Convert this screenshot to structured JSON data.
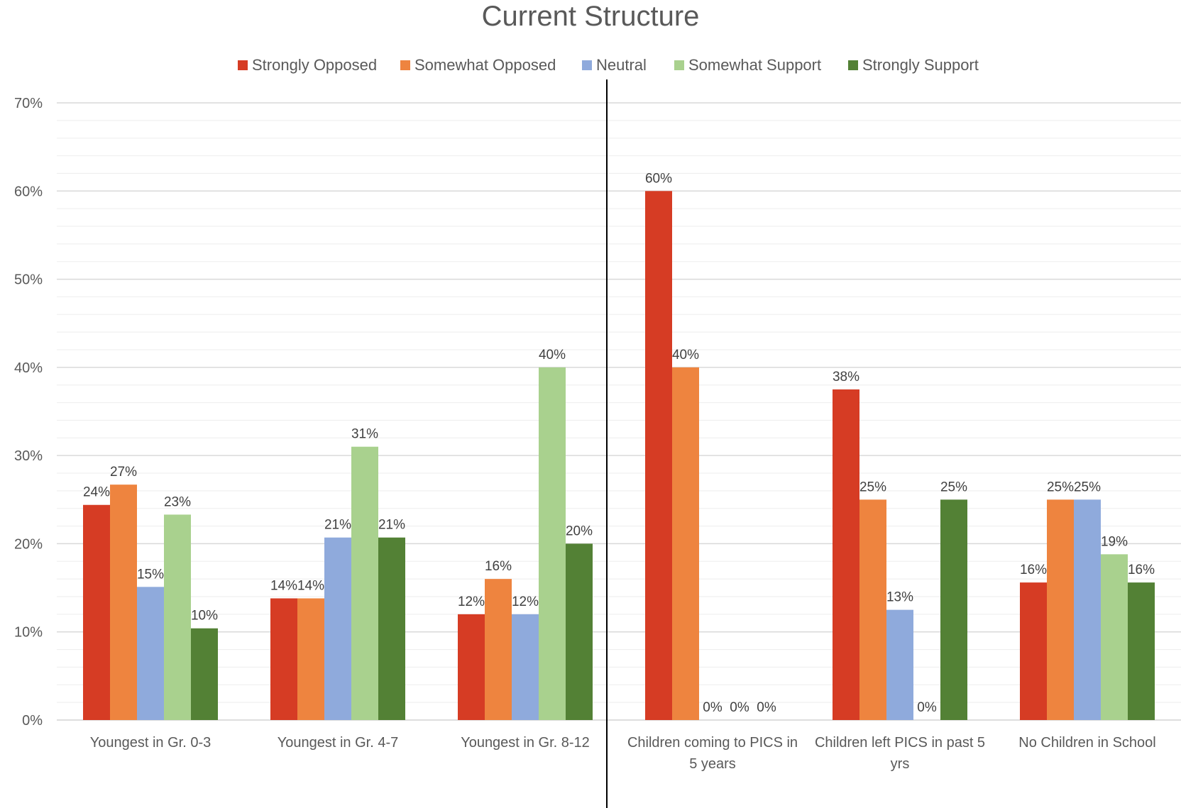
{
  "chart_data": {
    "type": "bar",
    "title": "Current Structure",
    "xlabel": "",
    "ylabel": "",
    "ylim": [
      0,
      70
    ],
    "yticks": [
      "0%",
      "10%",
      "20%",
      "30%",
      "40%",
      "50%",
      "60%",
      "70%"
    ],
    "grid": true,
    "legend_position": "top",
    "categories": [
      [
        "Youngest in Gr. 0-3"
      ],
      [
        "Youngest in Gr. 4-7"
      ],
      [
        "Youngest in Gr. 8-12"
      ],
      [
        "Children coming to PICS in",
        "5 years"
      ],
      [
        "Children left PICS in past 5",
        "yrs"
      ],
      [
        "No Children in School"
      ]
    ],
    "series": [
      {
        "name": "Strongly Opposed",
        "color": "#D63C24",
        "values": [
          24.4,
          13.8,
          12,
          60,
          37.5,
          15.6
        ],
        "labels": [
          "24%",
          "14%",
          "12%",
          "60%",
          "38%",
          "16%"
        ]
      },
      {
        "name": "Somewhat Opposed",
        "color": "#EE843F",
        "values": [
          26.7,
          13.8,
          16,
          40,
          25,
          25
        ],
        "labels": [
          "27%",
          "14%",
          "16%",
          "40%",
          "25%",
          "25%"
        ]
      },
      {
        "name": "Neutral",
        "color": "#8FAADC",
        "values": [
          15.1,
          20.7,
          12,
          0,
          12.5,
          25
        ],
        "labels": [
          "15%",
          "21%",
          "12%",
          "0%",
          "13%",
          "25%"
        ]
      },
      {
        "name": "Somewhat Support",
        "color": "#A9D18E",
        "values": [
          23.3,
          31,
          40,
          0,
          0,
          18.8
        ],
        "labels": [
          "23%",
          "31%",
          "40%",
          "0%",
          "0%",
          "19%"
        ]
      },
      {
        "name": "Strongly Support",
        "color": "#538135",
        "values": [
          10.4,
          20.7,
          20,
          0,
          25,
          15.6
        ],
        "labels": [
          "10%",
          "21%",
          "20%",
          "0%",
          "25%",
          "16%"
        ]
      }
    ]
  }
}
